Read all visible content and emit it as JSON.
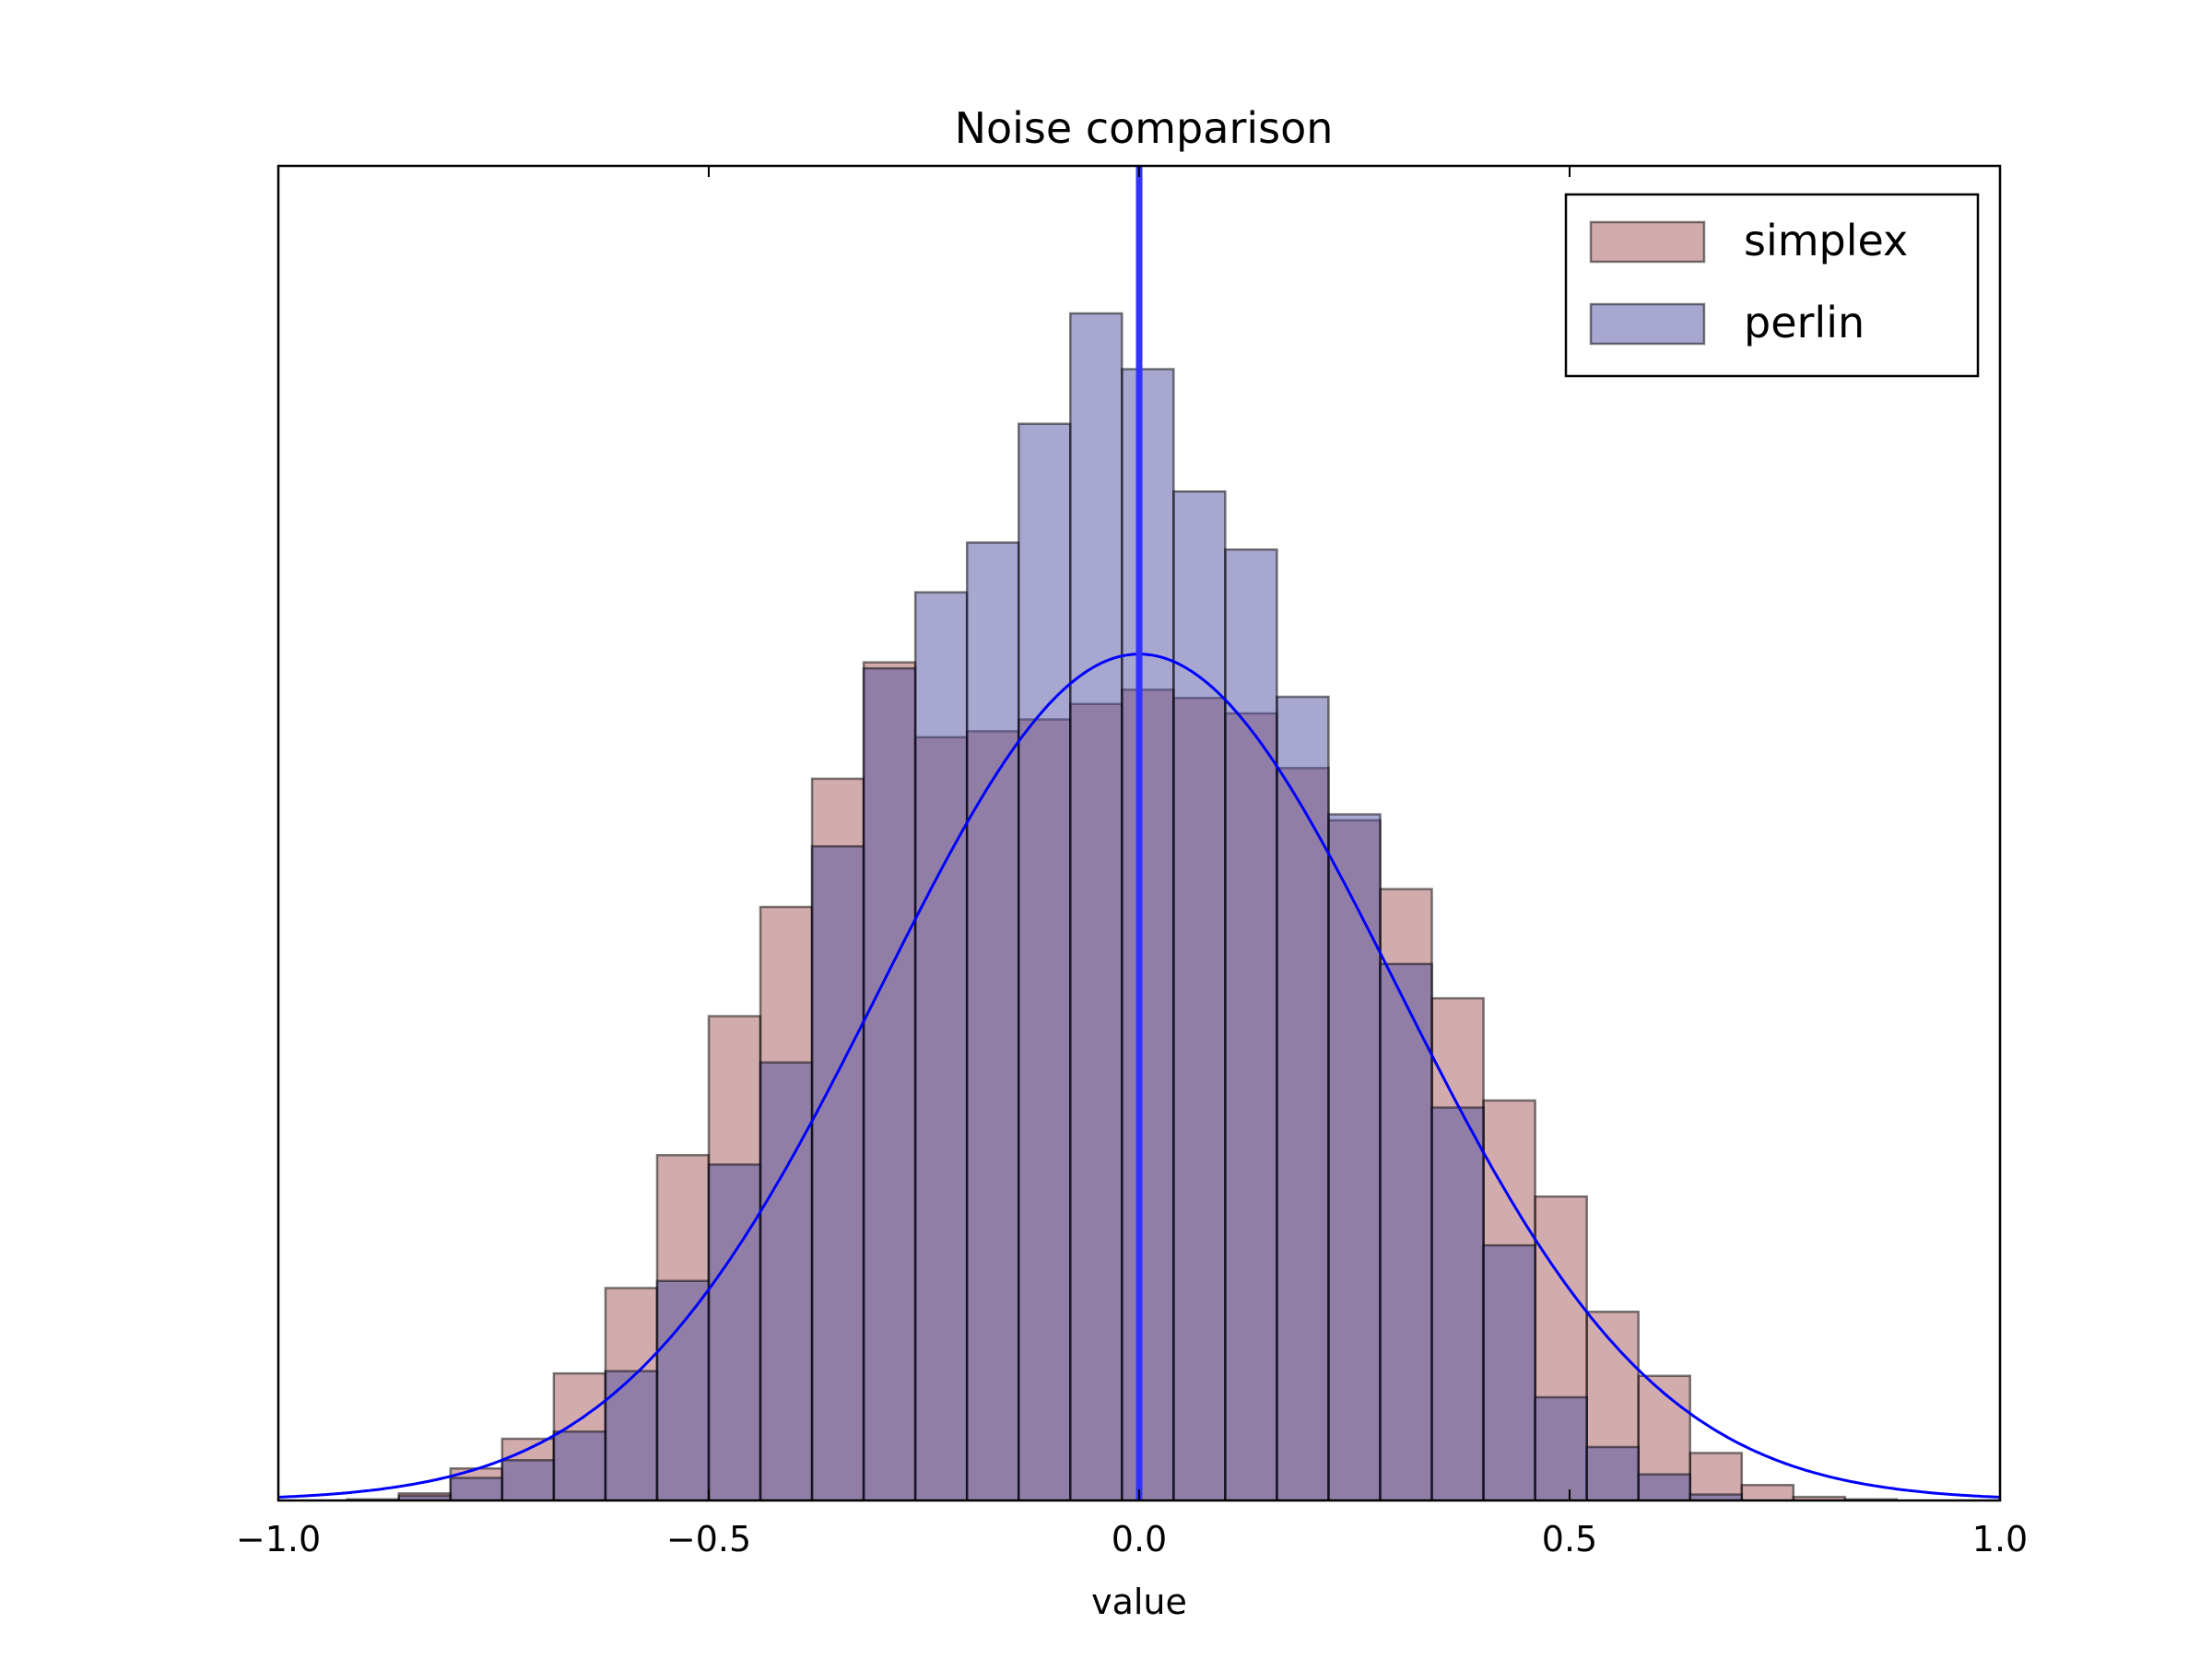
{
  "chart_data": {
    "type": "histogram",
    "title": "Noise comparison",
    "xlabel": "value",
    "ylabel": "",
    "xlim": [
      -1.0,
      1.0
    ],
    "ylim": [
      0,
      1.0
    ],
    "x_ticks": [
      "−1.0",
      "−0.5",
      "0.0",
      "0.5",
      "1.0"
    ],
    "x_tick_values": [
      -1.0,
      -0.5,
      0.0,
      0.5,
      1.0
    ],
    "y_ticks_shown": false,
    "grid": false,
    "legend": {
      "position": "upper right",
      "entries": [
        "simplex",
        "perlin"
      ]
    },
    "bin_edges": [
      -0.98,
      -0.92,
      -0.86,
      -0.8,
      -0.74,
      -0.68,
      -0.62,
      -0.56,
      -0.5,
      -0.44,
      -0.38,
      -0.32,
      -0.26,
      -0.2,
      -0.14,
      -0.08,
      -0.02,
      0.04,
      0.1,
      0.16,
      0.22,
      0.28,
      0.34,
      0.4,
      0.46,
      0.52,
      0.58,
      0.64,
      0.7,
      0.76,
      0.82,
      0.88,
      0.94
    ],
    "series": [
      {
        "name": "simplex",
        "color": "#a55a5a",
        "fill_opacity": 0.5,
        "values": [
          0.0,
          0.001,
          0.006,
          0.027,
          0.052,
          0.107,
          0.179,
          0.291,
          0.408,
          0.5,
          0.608,
          0.706,
          0.643,
          0.648,
          0.658,
          0.671,
          0.683,
          0.676,
          0.663,
          0.617,
          0.573,
          0.515,
          0.423,
          0.337,
          0.256,
          0.159,
          0.105,
          0.04,
          0.013,
          0.003,
          0.001,
          0.0
        ]
      },
      {
        "name": "perlin",
        "color": "#4f4fa2",
        "fill_opacity": 0.5,
        "values": [
          0.0,
          0.0,
          0.004,
          0.019,
          0.034,
          0.058,
          0.109,
          0.185,
          0.283,
          0.369,
          0.551,
          0.701,
          0.765,
          0.807,
          0.907,
          1.0,
          0.953,
          0.85,
          0.801,
          0.677,
          0.578,
          0.452,
          0.331,
          0.215,
          0.087,
          0.045,
          0.022,
          0.005,
          0.0,
          0.0,
          0.0,
          0.0
        ]
      }
    ],
    "curve": {
      "type": "normal_pdf",
      "color": "#0000ff",
      "mean": 0.0,
      "std": 0.3,
      "peak": 0.713
    },
    "vline": {
      "x": 0.0,
      "color": "#3333ff"
    }
  }
}
